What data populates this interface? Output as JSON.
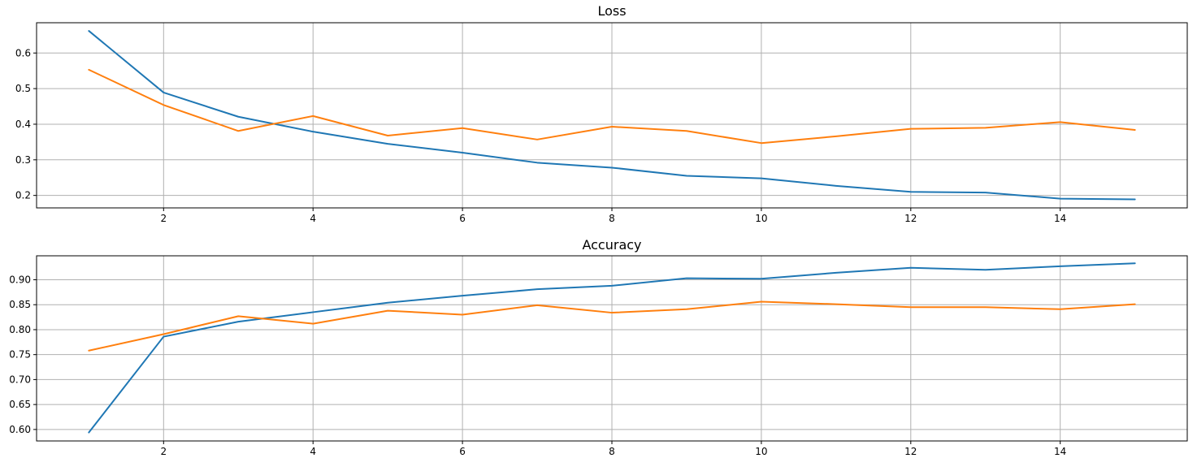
{
  "chart_data": [
    {
      "type": "line",
      "title": "Loss",
      "xlabel": "",
      "ylabel": "",
      "x": [
        1,
        2,
        3,
        4,
        5,
        6,
        7,
        8,
        9,
        10,
        11,
        12,
        13,
        14,
        15
      ],
      "xlim": [
        0.3,
        15.7
      ],
      "ylim": [
        0.165,
        0.685
      ],
      "xticks": [
        2,
        4,
        6,
        8,
        10,
        12,
        14
      ],
      "yticks": [
        0.2,
        0.3,
        0.4,
        0.5,
        0.6
      ],
      "yticklabels": [
        "0.2",
        "0.3",
        "0.4",
        "0.5",
        "0.6"
      ],
      "grid": true,
      "series": [
        {
          "color": "#1f77b4",
          "values": [
            0.662,
            0.489,
            0.421,
            0.379,
            0.345,
            0.32,
            0.292,
            0.278,
            0.255,
            0.248,
            0.227,
            0.21,
            0.208,
            0.191,
            0.189
          ]
        },
        {
          "color": "#ff7f0e",
          "values": [
            0.553,
            0.454,
            0.381,
            0.423,
            0.368,
            0.389,
            0.357,
            0.393,
            0.381,
            0.347,
            0.366,
            0.387,
            0.39,
            0.406,
            0.384
          ]
        }
      ]
    },
    {
      "type": "line",
      "title": "Accuracy",
      "xlabel": "",
      "ylabel": "",
      "x": [
        1,
        2,
        3,
        4,
        5,
        6,
        7,
        8,
        9,
        10,
        11,
        12,
        13,
        14,
        15
      ],
      "xlim": [
        0.3,
        15.7
      ],
      "ylim": [
        0.577,
        0.948
      ],
      "xticks": [
        2,
        4,
        6,
        8,
        10,
        12,
        14
      ],
      "yticks": [
        0.6,
        0.65,
        0.7,
        0.75,
        0.8,
        0.85,
        0.9
      ],
      "yticklabels": [
        "0.60",
        "0.65",
        "0.70",
        "0.75",
        "0.80",
        "0.85",
        "0.90"
      ],
      "grid": true,
      "series": [
        {
          "color": "#1f77b4",
          "values": [
            0.594,
            0.786,
            0.816,
            0.835,
            0.854,
            0.868,
            0.881,
            0.888,
            0.903,
            0.902,
            0.914,
            0.924,
            0.92,
            0.927,
            0.933
          ]
        },
        {
          "color": "#ff7f0e",
          "values": [
            0.758,
            0.791,
            0.827,
            0.812,
            0.838,
            0.83,
            0.849,
            0.834,
            0.841,
            0.856,
            0.851,
            0.845,
            0.845,
            0.841,
            0.851
          ]
        }
      ]
    }
  ]
}
